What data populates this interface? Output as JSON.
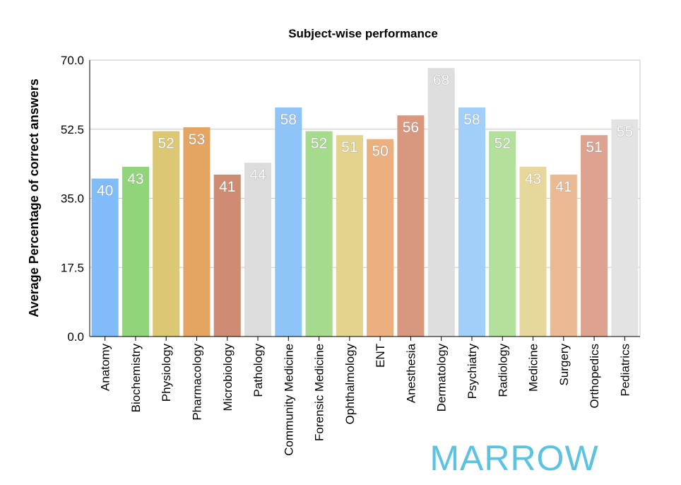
{
  "chart_data": {
    "type": "bar",
    "title": "Subject-wise performance",
    "xlabel": "",
    "ylabel": "Average Percentage of correct answers",
    "ylim": [
      0,
      70
    ],
    "yticks": [
      "0.0",
      "17.5",
      "35.0",
      "52.5",
      "70.0"
    ],
    "grid": true,
    "categories": [
      "Anatomy",
      "Biochemistry",
      "Physiology",
      "Pharmacology",
      "Microbiology",
      "Pathology",
      "Community Medicine",
      "Forensic Medicine",
      "Ophthalmology",
      "ENT",
      "Anesthesia",
      "Dermatology",
      "Psychiatry",
      "Radiology",
      "Medicine",
      "Surgery",
      "Orthopedics",
      "Pediatrics"
    ],
    "values": [
      40,
      43,
      52,
      53,
      41,
      44,
      58,
      52,
      51,
      50,
      56,
      68,
      58,
      52,
      43,
      41,
      51,
      55
    ],
    "colors": [
      "#7fbcf9",
      "#90d57a",
      "#dcc772",
      "#e5a562",
      "#d08b73",
      "#dcdcdc",
      "#8fc4f9",
      "#a6db8d",
      "#e3d38d",
      "#ebb07e",
      "#d9977e",
      "#dedede",
      "#a2cff9",
      "#b3e09b",
      "#e8d79a",
      "#ecba92",
      "#dea390",
      "#e3e3e3"
    ]
  },
  "logo": {
    "text": "MARROW"
  }
}
